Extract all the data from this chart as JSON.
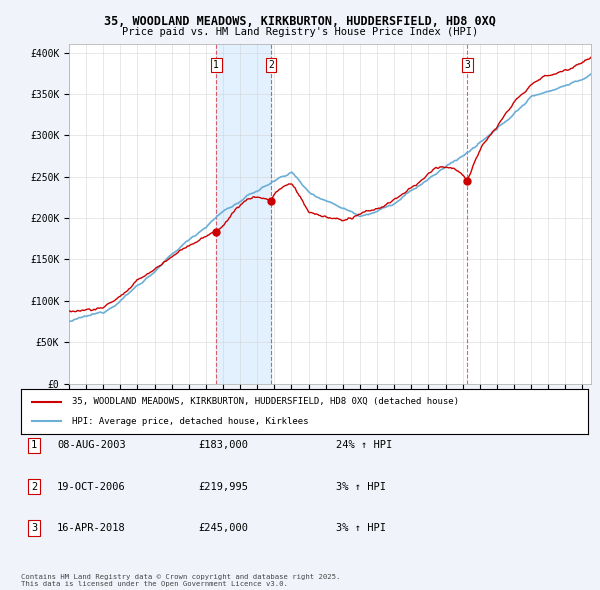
{
  "title_line1": "35, WOODLAND MEADOWS, KIRKBURTON, HUDDERSFIELD, HD8 0XQ",
  "title_line2": "Price paid vs. HM Land Registry's House Price Index (HPI)",
  "ylabel_ticks": [
    "£0",
    "£50K",
    "£100K",
    "£150K",
    "£200K",
    "£250K",
    "£300K",
    "£350K",
    "£400K"
  ],
  "ytick_values": [
    0,
    50000,
    100000,
    150000,
    200000,
    250000,
    300000,
    350000,
    400000
  ],
  "ylim": [
    0,
    410000
  ],
  "xlim_start": 1995.0,
  "xlim_end": 2025.5,
  "hpi_color": "#6baed6",
  "price_color": "#cc0000",
  "vline_color": "#cc0000",
  "sale_dates": [
    2003.6,
    2006.8,
    2018.28
  ],
  "sale_prices": [
    183000,
    219995,
    245000
  ],
  "sale_labels": [
    "1",
    "2",
    "3"
  ],
  "legend_label_price": "35, WOODLAND MEADOWS, KIRKBURTON, HUDDERSFIELD, HD8 0XQ (detached house)",
  "legend_label_hpi": "HPI: Average price, detached house, Kirklees",
  "table_data": [
    [
      "1",
      "08-AUG-2003",
      "£183,000",
      "24% ↑ HPI"
    ],
    [
      "2",
      "19-OCT-2006",
      "£219,995",
      "3% ↑ HPI"
    ],
    [
      "3",
      "16-APR-2018",
      "£245,000",
      "3% ↑ HPI"
    ]
  ],
  "footer_text": "Contains HM Land Registry data © Crown copyright and database right 2025.\nThis data is licensed under the Open Government Licence v3.0.",
  "bg_color": "#f0f4fa",
  "plot_bg_color": "#ffffff",
  "ownership_fill_color": "#ddeeff",
  "dot_color": "#cc0000"
}
